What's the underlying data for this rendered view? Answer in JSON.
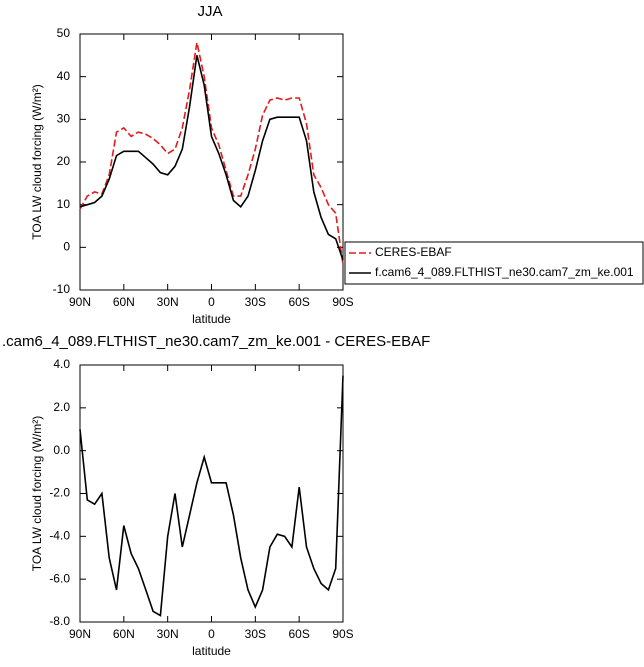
{
  "chart_data": [
    {
      "type": "line",
      "title": "JJA",
      "xlabel": "latitude",
      "ylabel": "TOA LW cloud forcing (W/m²)",
      "x": [
        90,
        85,
        80,
        75,
        70,
        65,
        60,
        55,
        50,
        45,
        40,
        35,
        30,
        25,
        20,
        15,
        10,
        5,
        0,
        -5,
        -10,
        -15,
        -20,
        -25,
        -30,
        -35,
        -40,
        -45,
        -50,
        -55,
        -60,
        -65,
        -70,
        -75,
        -80,
        -85,
        -90
      ],
      "xlim": [
        90,
        -90
      ],
      "xticks": [
        {
          "value": 90,
          "label": "90N"
        },
        {
          "value": 60,
          "label": "60N"
        },
        {
          "value": 30,
          "label": "30N"
        },
        0,
        {
          "value": -30,
          "label": "30S"
        },
        {
          "value": -60,
          "label": "60S"
        },
        {
          "value": -90,
          "label": "90S"
        }
      ],
      "ylim": [
        -10,
        50
      ],
      "yticks": [
        -10,
        0,
        10,
        20,
        30,
        40,
        50
      ],
      "legend": "right",
      "series": [
        {
          "name": "CERES-EBAF",
          "color": "#e41a1c",
          "line_style": "dashed",
          "values": [
            9,
            12,
            13,
            12.5,
            17,
            27,
            28,
            26,
            27,
            26.5,
            25.5,
            24,
            22,
            23,
            28,
            37,
            48,
            40,
            28,
            24,
            18,
            12,
            12,
            17,
            23,
            31,
            34.5,
            35,
            34.5,
            35,
            35,
            29,
            17,
            14,
            10,
            8,
            -4
          ]
        },
        {
          "name": "f.cam6_4_089.FLTHIST_ne30.cam7_zm_ke.001",
          "color": "#000000",
          "line_style": "solid",
          "values": [
            9.5,
            10,
            10.5,
            12,
            16,
            21.5,
            22.5,
            22.5,
            22.5,
            21,
            19.5,
            17.5,
            17,
            19,
            23,
            33,
            45,
            38,
            26,
            22,
            17,
            11,
            9.5,
            12,
            18,
            25,
            30,
            30.5,
            30.5,
            30.5,
            30.5,
            25,
            13,
            7,
            3,
            2,
            -3
          ]
        }
      ]
    },
    {
      "type": "line",
      "title": ".cam6_4_089.FLTHIST_ne30.cam7_zm_ke.001 - CERES-EBAF",
      "xlabel": "latitude",
      "ylabel": "TOA LW cloud forcing (W/m²)",
      "x": [
        90,
        85,
        80,
        75,
        70,
        65,
        60,
        55,
        50,
        45,
        40,
        35,
        30,
        25,
        20,
        15,
        10,
        5,
        0,
        -5,
        -10,
        -15,
        -20,
        -25,
        -30,
        -35,
        -40,
        -45,
        -50,
        -55,
        -60,
        -65,
        -70,
        -75,
        -80,
        -85,
        -90
      ],
      "xlim": [
        90,
        -90
      ],
      "xticks": [
        {
          "value": 90,
          "label": "90N"
        },
        {
          "value": 60,
          "label": "60N"
        },
        {
          "value": 30,
          "label": "30N"
        },
        0,
        {
          "value": -30,
          "label": "30S"
        },
        {
          "value": -60,
          "label": "60S"
        },
        {
          "value": -90,
          "label": "90S"
        }
      ],
      "ylim": [
        -8,
        4
      ],
      "yticks": [
        {
          "value": -8,
          "label": "-8.0"
        },
        {
          "value": -6,
          "label": "-6.0"
        },
        {
          "value": -4,
          "label": "-4.0"
        },
        {
          "value": -2,
          "label": "-2.0"
        },
        {
          "value": 0,
          "label": "0.0"
        },
        {
          "value": 2,
          "label": "2.0"
        },
        {
          "value": 4,
          "label": "4.0"
        }
      ],
      "color": "#000000",
      "values": [
        1.0,
        -2.3,
        -2.5,
        -2.0,
        -5.0,
        -6.5,
        -3.5,
        -4.8,
        -5.5,
        -6.5,
        -7.5,
        -7.7,
        -4.0,
        -2.0,
        -4.5,
        -3.0,
        -1.5,
        -0.3,
        -1.5,
        -1.5,
        -1.5,
        -3.0,
        -5.0,
        -6.5,
        -7.3,
        -6.5,
        -4.5,
        -3.9,
        -4.0,
        -4.5,
        -1.7,
        -4.5,
        -5.5,
        -6.2,
        -6.5,
        -5.5,
        3.5
      ]
    }
  ]
}
